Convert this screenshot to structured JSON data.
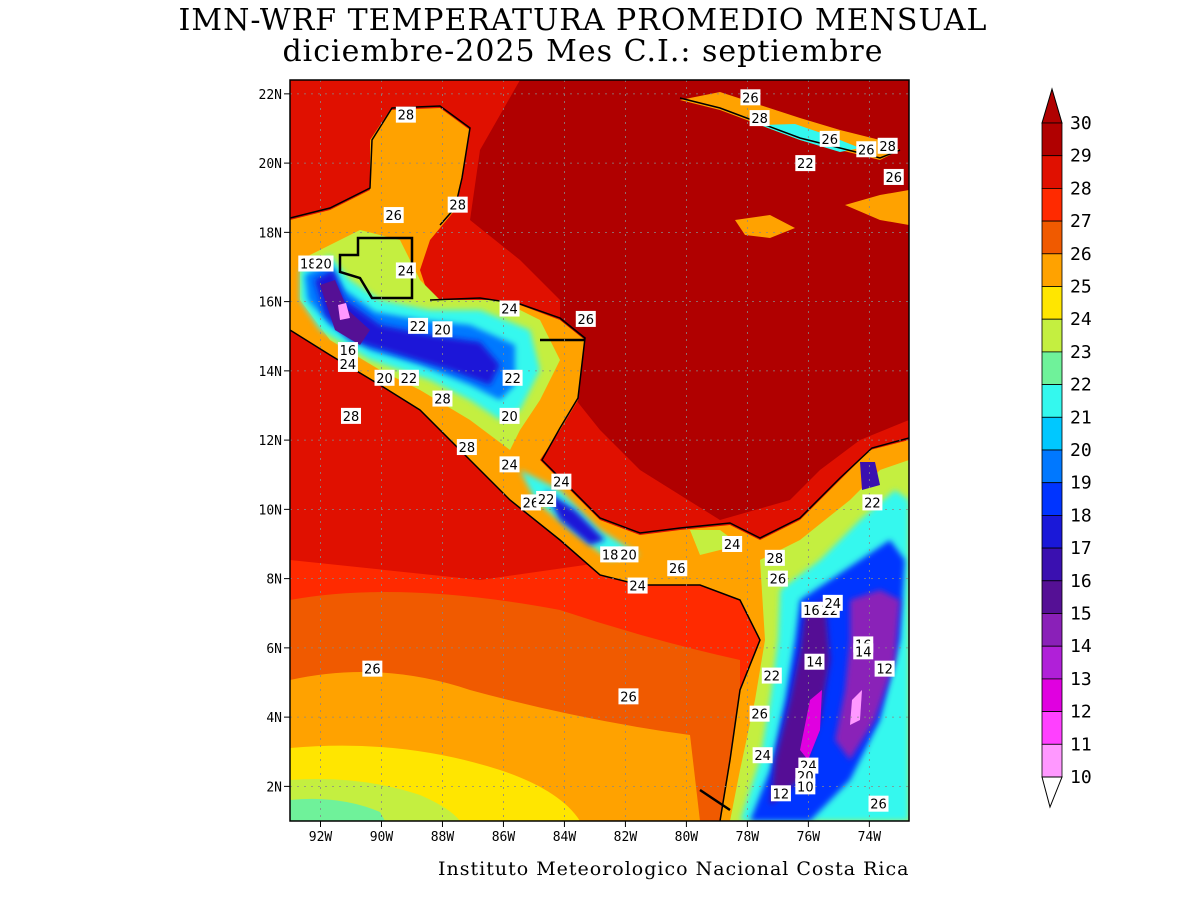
{
  "title_line1": "IMN-WRF  TEMPERATURA PROMEDIO MENSUAL",
  "title_line2": "diciembre-2025 Mes C.I.: septiembre",
  "credit": "Instituto Meteorologico Nacional Costa Rica",
  "map": {
    "lat_range": [
      1,
      22.4
    ],
    "lon_range": [
      -93,
      -72.7
    ],
    "lat_ticks": [
      "22N",
      "20N",
      "18N",
      "16N",
      "14N",
      "12N",
      "10N",
      "8N",
      "6N",
      "4N",
      "2N"
    ],
    "lat_tick_values": [
      22,
      20,
      18,
      16,
      14,
      12,
      10,
      8,
      6,
      4,
      2
    ],
    "lon_ticks": [
      "92W",
      "90W",
      "88W",
      "86W",
      "84W",
      "82W",
      "80W",
      "78W",
      "76W",
      "74W"
    ],
    "lon_tick_values": [
      -92,
      -90,
      -88,
      -86,
      -84,
      -82,
      -80,
      -78,
      -76,
      -74
    ],
    "contour_labels": [
      {
        "text": "28",
        "lat": 21.4,
        "lon": -89.2
      },
      {
        "text": "26",
        "lat": 21.9,
        "lon": -77.9
      },
      {
        "text": "28",
        "lat": 21.3,
        "lon": -77.6
      },
      {
        "text": "26",
        "lat": 20.7,
        "lon": -75.3
      },
      {
        "text": "28",
        "lat": 20.5,
        "lon": -73.4
      },
      {
        "text": "26",
        "lat": 20.4,
        "lon": -74.1
      },
      {
        "text": "22",
        "lat": 20.0,
        "lon": -76.1
      },
      {
        "text": "26",
        "lat": 19.6,
        "lon": -73.2
      },
      {
        "text": "28",
        "lat": 18.8,
        "lon": -87.5
      },
      {
        "text": "26",
        "lat": 18.5,
        "lon": -89.6
      },
      {
        "text": "24",
        "lat": 16.9,
        "lon": -89.2
      },
      {
        "text": "18",
        "lat": 17.1,
        "lon": -92.4
      },
      {
        "text": "20",
        "lat": 17.1,
        "lon": -91.9
      },
      {
        "text": "24",
        "lat": 15.8,
        "lon": -85.8
      },
      {
        "text": "26",
        "lat": 15.5,
        "lon": -83.3
      },
      {
        "text": "22",
        "lat": 15.3,
        "lon": -88.8
      },
      {
        "text": "20",
        "lat": 15.2,
        "lon": -88.0
      },
      {
        "text": "16",
        "lat": 14.6,
        "lon": -91.1
      },
      {
        "text": "24",
        "lat": 14.2,
        "lon": -91.1
      },
      {
        "text": "20",
        "lat": 13.8,
        "lon": -89.9
      },
      {
        "text": "22",
        "lat": 13.8,
        "lon": -89.1
      },
      {
        "text": "22",
        "lat": 13.8,
        "lon": -85.7
      },
      {
        "text": "28",
        "lat": 13.2,
        "lon": -88.0
      },
      {
        "text": "28",
        "lat": 12.7,
        "lon": -91.0
      },
      {
        "text": "20",
        "lat": 12.7,
        "lon": -85.8
      },
      {
        "text": "28",
        "lat": 11.8,
        "lon": -87.2
      },
      {
        "text": "24",
        "lat": 11.3,
        "lon": -85.8
      },
      {
        "text": "24",
        "lat": 10.8,
        "lon": -84.1
      },
      {
        "text": "26",
        "lat": 10.2,
        "lon": -85.1
      },
      {
        "text": "22",
        "lat": 10.3,
        "lon": -84.6
      },
      {
        "text": "22",
        "lat": 10.2,
        "lon": -73.9
      },
      {
        "text": "18",
        "lat": 8.7,
        "lon": -82.5
      },
      {
        "text": "20",
        "lat": 8.7,
        "lon": -81.9
      },
      {
        "text": "24",
        "lat": 9.0,
        "lon": -78.5
      },
      {
        "text": "26",
        "lat": 8.3,
        "lon": -80.3
      },
      {
        "text": "28",
        "lat": 8.6,
        "lon": -77.1
      },
      {
        "text": "26",
        "lat": 8.0,
        "lon": -77.0
      },
      {
        "text": "24",
        "lat": 7.8,
        "lon": -81.6
      },
      {
        "text": "16",
        "lat": 7.1,
        "lon": -75.9
      },
      {
        "text": "22",
        "lat": 7.1,
        "lon": -75.3
      },
      {
        "text": "24",
        "lat": 7.3,
        "lon": -75.2
      },
      {
        "text": "16",
        "lat": 6.1,
        "lon": -74.2
      },
      {
        "text": "14",
        "lat": 5.9,
        "lon": -74.2
      },
      {
        "text": "14",
        "lat": 5.6,
        "lon": -75.8
      },
      {
        "text": "12",
        "lat": 5.4,
        "lon": -73.5
      },
      {
        "text": "22",
        "lat": 5.2,
        "lon": -77.2
      },
      {
        "text": "26",
        "lat": 5.4,
        "lon": -90.3
      },
      {
        "text": "26",
        "lat": 4.6,
        "lon": -81.9
      },
      {
        "text": "26",
        "lat": 4.1,
        "lon": -77.6
      },
      {
        "text": "24",
        "lat": 2.9,
        "lon": -77.5
      },
      {
        "text": "24",
        "lat": 2.6,
        "lon": -76.0
      },
      {
        "text": "20",
        "lat": 2.3,
        "lon": -76.1
      },
      {
        "text": "10",
        "lat": 2.0,
        "lon": -76.1
      },
      {
        "text": "12",
        "lat": 1.8,
        "lon": -76.9
      },
      {
        "text": "26",
        "lat": 1.5,
        "lon": -73.7
      }
    ]
  },
  "colorbar": {
    "levels": [
      "30",
      "29",
      "28",
      "27",
      "26",
      "25",
      "24",
      "23",
      "22",
      "21",
      "20",
      "19",
      "18",
      "17",
      "16",
      "15",
      "14",
      "13",
      "12",
      "11",
      "10"
    ],
    "colors": [
      "#b00000",
      "#e01000",
      "#ff2a00",
      "#f05a00",
      "#ffa200",
      "#ffe600",
      "#c4ef40",
      "#6ff29a",
      "#34f8ee",
      "#00c8ff",
      "#0078ff",
      "#0034ff",
      "#1a18d8",
      "#3a10b0",
      "#551095",
      "#8a20b8",
      "#b020d8",
      "#e000e0",
      "#ff40ff",
      "#ff98ff"
    ]
  }
}
